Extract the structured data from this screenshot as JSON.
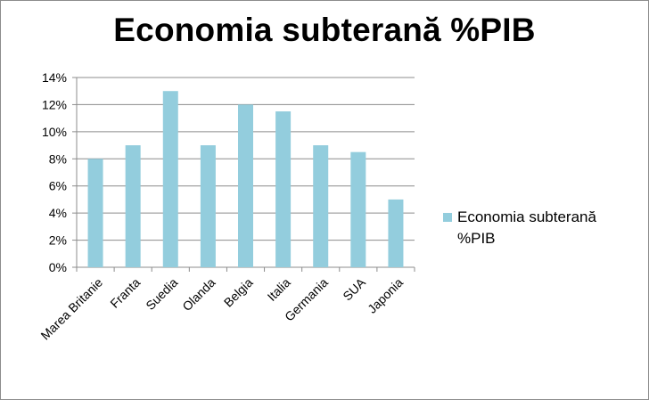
{
  "chart_data": {
    "type": "bar",
    "title": "Economia subterană %PIB",
    "categories": [
      "Marea Britanie",
      "Franta",
      "Suedia",
      "Olanda",
      "Belgia",
      "Italia",
      "Germania",
      "SUA",
      "Japonia"
    ],
    "series": [
      {
        "name": "Economia subterană %PIB",
        "values": [
          8,
          9,
          13,
          9,
          12,
          11.5,
          9,
          8.5,
          5
        ]
      }
    ],
    "yticks": [
      "0%",
      "2%",
      "4%",
      "6%",
      "8%",
      "10%",
      "12%",
      "14%"
    ],
    "ylim": [
      0,
      14
    ],
    "value_format": "percent",
    "grid": true,
    "legend_position": "right",
    "colors": {
      "bar": "#93cddd",
      "grid": "#8c8c8c",
      "axis": "#8c8c8c",
      "border": "#8c8c8c"
    }
  }
}
